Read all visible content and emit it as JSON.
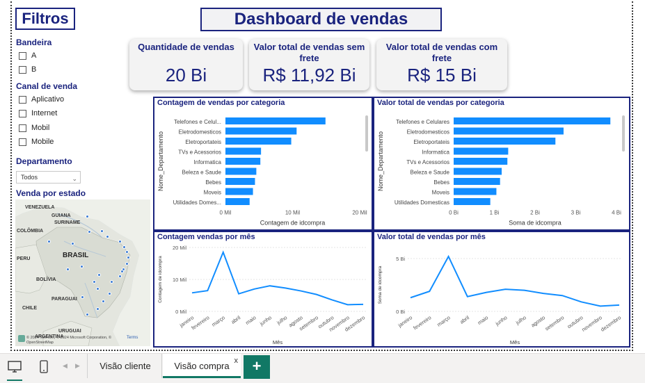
{
  "page": {
    "title": "Dashboard de vendas"
  },
  "filters": {
    "title": "Filtros",
    "bandeira": {
      "label": "Bandeira",
      "options": [
        "A",
        "B"
      ]
    },
    "canal": {
      "label": "Canal de venda",
      "options": [
        "Aplicativo",
        "Internet",
        "Mobil",
        "Mobile"
      ]
    },
    "departamento": {
      "label": "Departamento",
      "selected": "Todos"
    },
    "estado": {
      "label": "Venda por estado"
    }
  },
  "map": {
    "countries": [
      "VENEZUELA",
      "GUIANA",
      "SURINAME",
      "COLÔMBIA",
      "BRASIL",
      "PERU",
      "BOLÍVIA",
      "PARAGUAI",
      "CHILE",
      "URUGUAI",
      "ARGENTINA"
    ],
    "attribution": "© 2024 TomTom, © 2024 Microsoft Corporation, © OpenStreetMap",
    "terms": "Terms",
    "marker_color": "#3a7bd5"
  },
  "cards": [
    {
      "label": "Quantidade de vendas",
      "value": "20 Bi"
    },
    {
      "label": "Valor total de vendas sem frete",
      "value": "R$ 11,92 Bi"
    },
    {
      "label": "Valor total de vendas com frete",
      "value": "R$ 15 Bi"
    }
  ],
  "colors": {
    "accent": "#1a237e",
    "bar": "#118dff",
    "tab_active": "#117865"
  },
  "chart_data": [
    {
      "type": "bar",
      "orientation": "horizontal",
      "title": "Contagem de vendas por categoria",
      "xlabel": "Contagem de idcompra",
      "ylabel": "Nome_Departamento",
      "categories": [
        "Telefones e Celul...",
        "Eletrodomesticos",
        "Eletroportateis",
        "TVs e Acessorios",
        "Informatica",
        "Beleza e Saude",
        "Bebes",
        "Moveis",
        "Utilidades Domes..."
      ],
      "values": [
        14.9,
        10.6,
        9.8,
        5.3,
        5.2,
        4.6,
        4.4,
        4.1,
        3.6
      ],
      "unit": "Mil",
      "xlim": [
        0,
        20
      ],
      "xticks": [
        "0 Mil",
        "10 Mil",
        "20 Mil"
      ]
    },
    {
      "type": "bar",
      "orientation": "horizontal",
      "title": "Valor total de vendas por categoria",
      "xlabel": "Soma de idcompra",
      "ylabel": "Nome_Departamento",
      "categories": [
        "Telefones e Celulares",
        "Eletrodomesticos",
        "Eletroportateis",
        "Informatica",
        "TVs e Acessorios",
        "Beleza e Saude",
        "Bebes",
        "Moveis",
        "Utilidades Domesticas"
      ],
      "values": [
        3.85,
        2.7,
        2.5,
        1.34,
        1.32,
        1.18,
        1.14,
        1.05,
        0.9
      ],
      "unit": "Bi",
      "xlim": [
        0,
        4
      ],
      "xticks": [
        "0 Bi",
        "1 Bi",
        "2 Bi",
        "3 Bi",
        "4 Bi"
      ]
    },
    {
      "type": "line",
      "title": "Contagem vendas por mês",
      "xlabel": "Mês",
      "ylabel": "Contagem de idcompra",
      "x": [
        "janeiro",
        "fevereiro",
        "março",
        "abril",
        "maio",
        "junho",
        "julho",
        "agosto",
        "setembro",
        "outubro",
        "novembro",
        "dezembro"
      ],
      "values": [
        5.8,
        6.5,
        18.5,
        5.5,
        7.0,
        8.0,
        7.3,
        6.4,
        5.3,
        3.6,
        2.1,
        2.2
      ],
      "unit": "Mil",
      "ylim": [
        0,
        20
      ],
      "yticks": [
        "0 Mil",
        "10 Mil",
        "20 Mil"
      ]
    },
    {
      "type": "line",
      "title": "Valor total de vendas por mês",
      "xlabel": "Mês",
      "ylabel": "Soma de idcompra",
      "x": [
        "janeiro",
        "fevereiro",
        "março",
        "abril",
        "maio",
        "junho",
        "julho",
        "agosto",
        "setembro",
        "outubro",
        "novembro",
        "dezembro"
      ],
      "values": [
        1.3,
        1.9,
        5.2,
        1.4,
        1.8,
        2.1,
        2.0,
        1.7,
        1.5,
        0.9,
        0.5,
        0.6
      ],
      "unit": "Bi",
      "ylim": [
        0,
        5
      ],
      "yticks": [
        "0 Bi",
        "5 Bi"
      ]
    }
  ],
  "tabs": [
    {
      "label": "Visão cliente",
      "active": false
    },
    {
      "label": "Visão compra",
      "active": true
    }
  ],
  "tab_close": "x",
  "add_tab": "+"
}
